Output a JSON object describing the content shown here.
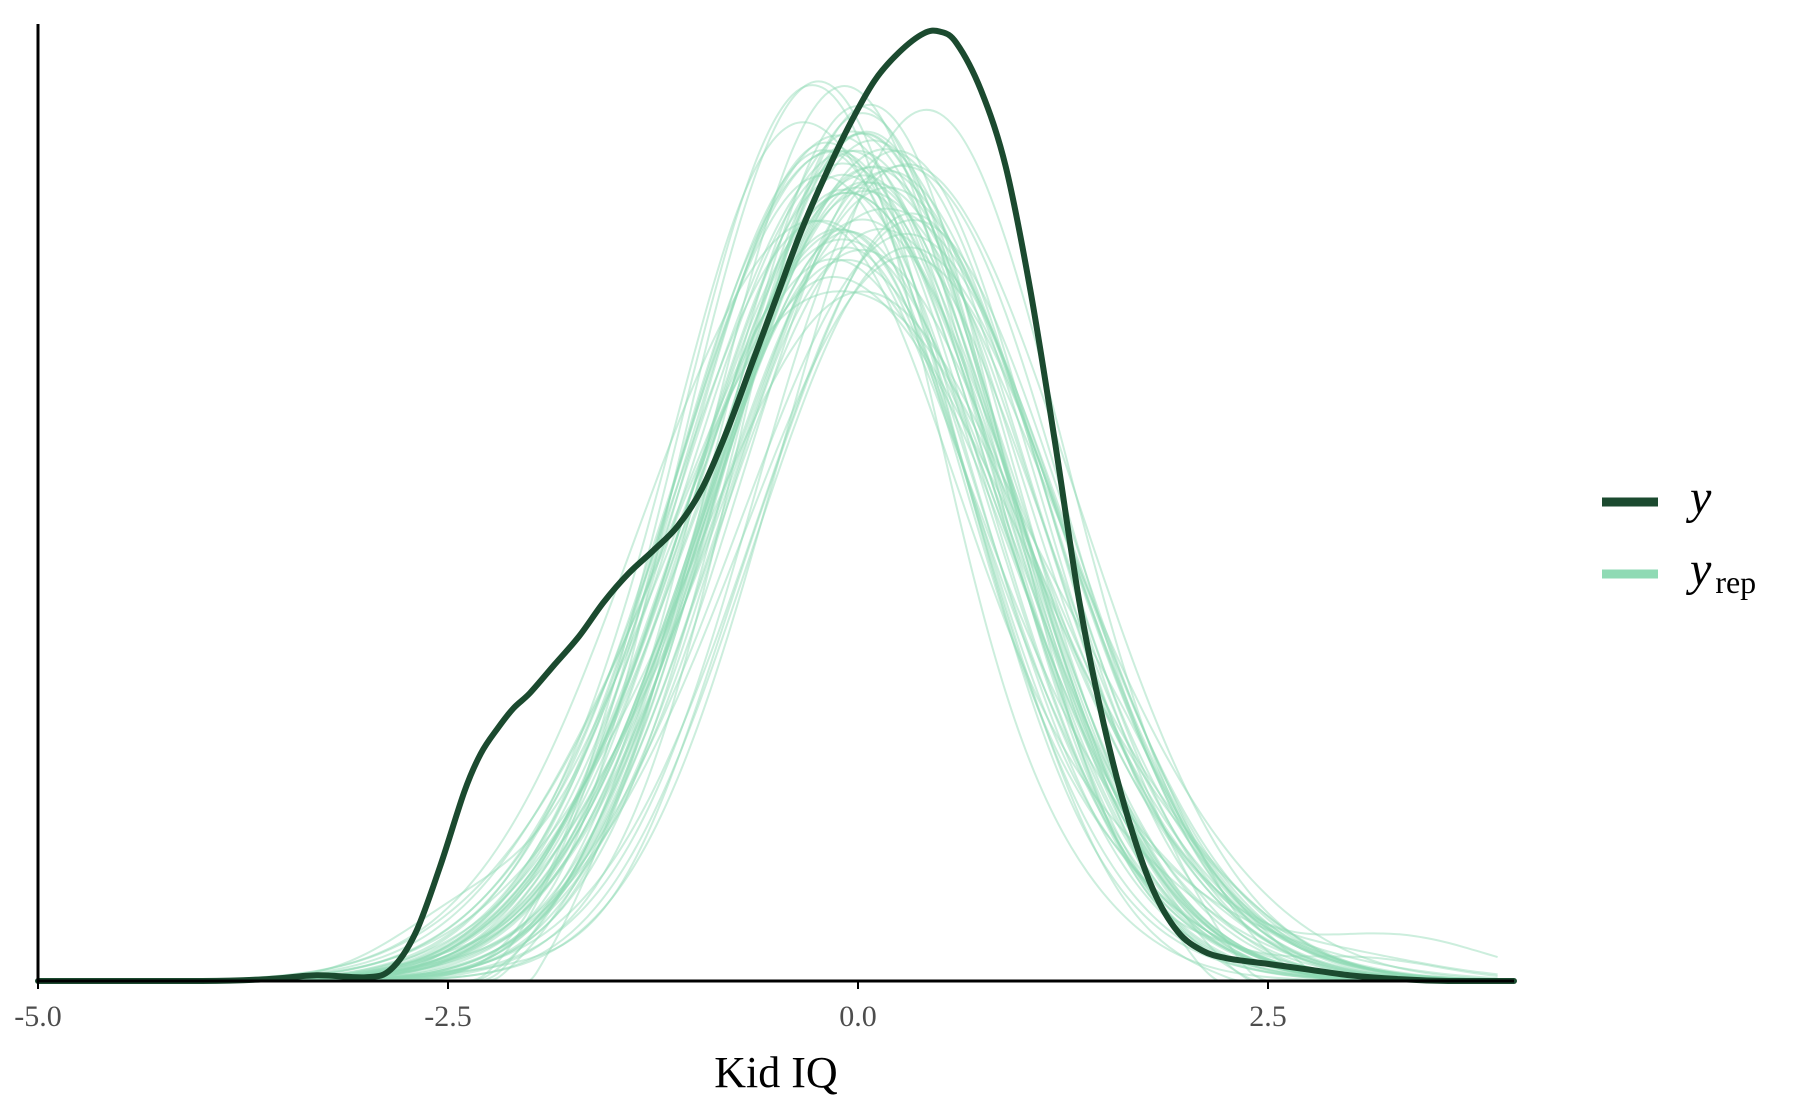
{
  "chart_data": {
    "type": "line",
    "xlabel": "Kid IQ",
    "ylabel": "",
    "xlim": [
      -5.0,
      4.0
    ],
    "ylim": [
      0,
      0.505
    ],
    "x_ticks": [
      -5.0,
      -2.5,
      0.0,
      2.5
    ],
    "x_tick_labels": [
      "-5.0",
      "-2.5",
      "0.0",
      "2.5"
    ],
    "grid": false,
    "legend_position": "right",
    "colors": {
      "y": "#1b4a2f",
      "yrep": "#8fdab4"
    },
    "series": [
      {
        "name": "y",
        "x": [
          -5.0,
          -4.0,
          -3.6,
          -3.3,
          -3.0,
          -2.85,
          -2.7,
          -2.55,
          -2.4,
          -2.3,
          -2.2,
          -2.1,
          -2.0,
          -1.85,
          -1.7,
          -1.55,
          -1.4,
          -1.25,
          -1.1,
          -0.95,
          -0.8,
          -0.65,
          -0.5,
          -0.35,
          -0.2,
          -0.05,
          0.1,
          0.25,
          0.4,
          0.5,
          0.6,
          0.75,
          0.9,
          1.05,
          1.2,
          1.35,
          1.5,
          1.65,
          1.8,
          1.95,
          2.1,
          2.25,
          2.5,
          2.75,
          3.0,
          3.3,
          3.6,
          4.0
        ],
        "values": [
          0.0,
          0.0,
          0.001,
          0.003,
          0.002,
          0.006,
          0.025,
          0.06,
          0.1,
          0.12,
          0.133,
          0.144,
          0.152,
          0.167,
          0.182,
          0.2,
          0.215,
          0.227,
          0.24,
          0.26,
          0.29,
          0.325,
          0.36,
          0.395,
          0.425,
          0.452,
          0.475,
          0.49,
          0.5,
          0.501,
          0.495,
          0.47,
          0.43,
          0.365,
          0.285,
          0.2,
          0.135,
          0.085,
          0.048,
          0.026,
          0.016,
          0.012,
          0.009,
          0.006,
          0.003,
          0.001,
          0.0,
          0.0
        ]
      }
    ],
    "yrep_draws": 60
  },
  "legend": {
    "items": [
      {
        "label": "y",
        "subscript": ""
      },
      {
        "label": "y",
        "subscript": "rep"
      }
    ]
  }
}
